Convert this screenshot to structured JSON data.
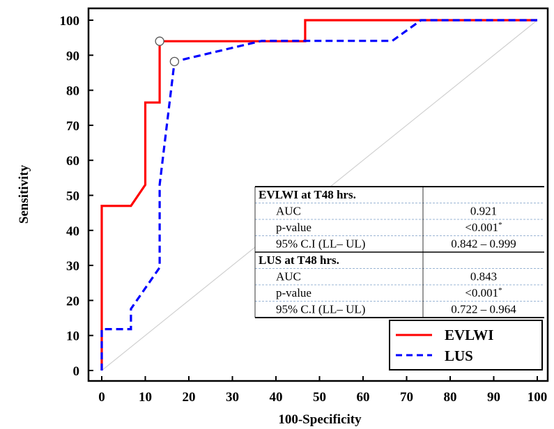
{
  "chart_data": {
    "type": "line",
    "xlabel": "100-Specificity",
    "ylabel": "Sensitivity",
    "xlim": [
      0,
      100
    ],
    "ylim": [
      0,
      100
    ],
    "x_ticks": [
      "0",
      "10",
      "20",
      "30",
      "40",
      "50",
      "60",
      "70",
      "80",
      "90",
      "100"
    ],
    "y_ticks": [
      "0",
      "10",
      "20",
      "30",
      "40",
      "50",
      "60",
      "70",
      "80",
      "90",
      "100"
    ],
    "grid": false,
    "legend_position": "bottom-right",
    "reference_line": {
      "x": [
        0,
        100
      ],
      "y": [
        0,
        100
      ],
      "color": "#d0d0d0"
    },
    "series": [
      {
        "name": "EVLWI",
        "color": "#ff0000",
        "style": "solid",
        "points": [
          [
            0,
            0
          ],
          [
            0,
            47
          ],
          [
            6.7,
            47
          ],
          [
            10,
            53
          ],
          [
            10,
            76.5
          ],
          [
            13.3,
            76.5
          ],
          [
            13.3,
            94
          ],
          [
            46.7,
            94
          ],
          [
            46.7,
            100
          ],
          [
            100,
            100
          ]
        ],
        "marker": [
          13.3,
          94
        ]
      },
      {
        "name": "LUS",
        "color": "#0000ff",
        "style": "dashed",
        "points": [
          [
            0,
            0
          ],
          [
            0,
            11.8
          ],
          [
            6.7,
            11.8
          ],
          [
            6.7,
            17.6
          ],
          [
            13.3,
            29.4
          ],
          [
            13.3,
            53
          ],
          [
            16.7,
            88.2
          ],
          [
            36.7,
            94.1
          ],
          [
            66.7,
            94.1
          ],
          [
            73.3,
            100
          ],
          [
            100,
            100
          ]
        ],
        "marker": [
          16.7,
          88.2
        ]
      }
    ],
    "table": [
      {
        "section": "EVLWI at T48 hrs.",
        "rows": [
          {
            "label": "AUC",
            "value": "0.921"
          },
          {
            "label": "p-value",
            "value": "<0.001*"
          },
          {
            "label": "95% C.I (LL– UL)",
            "value": "0.842 – 0.999"
          }
        ]
      },
      {
        "section": "LUS at T48 hrs.",
        "rows": [
          {
            "label": "AUC",
            "value": "0.843"
          },
          {
            "label": "p-value",
            "value": "<0.001*"
          },
          {
            "label": "95% C.I (LL– UL)",
            "value": "0.722 – 0.964"
          }
        ]
      }
    ]
  }
}
